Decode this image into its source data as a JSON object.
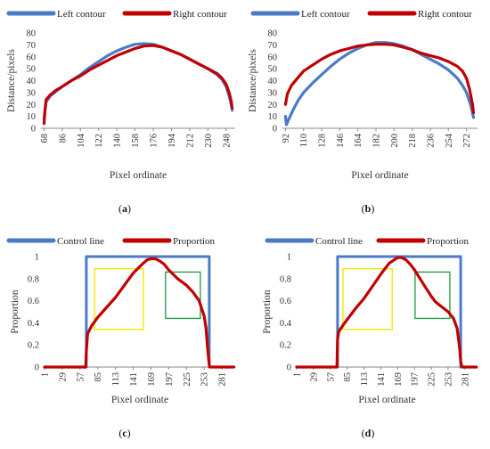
{
  "colors": {
    "blue": "#4a7bc4",
    "red": "#c00000",
    "yellow": "#f2e600",
    "green": "#2e9e4f",
    "axis": "#888888"
  },
  "chart_data": [
    {
      "type": "line",
      "panel_label": "a",
      "xlabel": "Pixel ordinate",
      "ylabel": "Distance/pixels",
      "ylim": [
        0,
        80
      ],
      "yticks": [
        0,
        10,
        20,
        30,
        40,
        50,
        60,
        70,
        80
      ],
      "xlim": [
        65,
        257
      ],
      "xticks": [
        68,
        86,
        104,
        122,
        140,
        158,
        176,
        194,
        212,
        230,
        248
      ],
      "legend": "top",
      "series": [
        {
          "name": "Left contour",
          "color": "#4a7bc4",
          "x": [
            68,
            70,
            74,
            80,
            86,
            95,
            104,
            113,
            122,
            131,
            140,
            149,
            158,
            167,
            176,
            185,
            194,
            203,
            212,
            221,
            230,
            239,
            244,
            248,
            251,
            253,
            254
          ],
          "y": [
            8,
            22,
            27,
            31,
            35,
            40,
            45,
            51,
            56,
            61,
            65,
            68,
            70.5,
            71,
            70.5,
            68,
            65,
            62,
            58,
            54,
            50,
            45,
            41,
            35,
            27,
            20,
            15
          ]
        },
        {
          "name": "Right contour",
          "color": "#c00000",
          "x": [
            68,
            69,
            70,
            74,
            80,
            86,
            95,
            104,
            113,
            122,
            131,
            140,
            149,
            158,
            167,
            176,
            185,
            194,
            203,
            212,
            221,
            230,
            239,
            244,
            248,
            251,
            253,
            254
          ],
          "y": [
            4,
            15,
            24,
            28,
            32,
            35,
            40,
            44,
            49,
            53,
            57,
            61,
            64,
            67,
            69,
            69.5,
            68,
            65,
            62,
            58,
            54,
            50,
            46,
            42,
            37,
            30,
            23,
            17
          ]
        }
      ]
    },
    {
      "type": "line",
      "panel_label": "b",
      "xlabel": "Pixel ordinate",
      "ylabel": "Distance/pixels",
      "ylim": [
        0,
        80
      ],
      "yticks": [
        0,
        10,
        20,
        30,
        40,
        50,
        60,
        70,
        80
      ],
      "xlim": [
        89,
        283
      ],
      "xticks": [
        92,
        110,
        128,
        146,
        164,
        182,
        200,
        218,
        236,
        254,
        272
      ],
      "legend": "top",
      "series": [
        {
          "name": "Left contour",
          "color": "#4a7bc4",
          "x": [
            92,
            93,
            95,
            100,
            105,
            110,
            119,
            128,
            137,
            146,
            155,
            164,
            173,
            182,
            191,
            200,
            209,
            218,
            227,
            236,
            245,
            254,
            263,
            268,
            272,
            276,
            279
          ],
          "y": [
            10,
            3,
            7,
            16,
            24,
            30,
            38,
            45,
            52,
            58,
            63,
            67,
            70,
            72,
            72,
            71,
            69,
            66,
            62,
            58,
            54,
            49,
            42,
            36,
            30,
            20,
            9
          ]
        },
        {
          "name": "Right contour",
          "color": "#c00000",
          "x": [
            92,
            94,
            98,
            104,
            110,
            119,
            128,
            137,
            146,
            155,
            164,
            173,
            182,
            191,
            200,
            209,
            218,
            227,
            236,
            245,
            254,
            263,
            268,
            272,
            275,
            278,
            279
          ],
          "y": [
            20,
            29,
            36,
            42,
            48,
            53,
            58,
            62,
            65,
            67,
            69,
            70,
            70.5,
            70.5,
            70,
            68,
            66,
            63,
            61,
            59,
            56,
            52,
            48,
            42,
            33,
            20,
            13
          ]
        }
      ]
    },
    {
      "type": "line",
      "panel_label": "c",
      "xlabel": "Pixel ordinate",
      "ylabel": "Proportion",
      "ylim": [
        0,
        1
      ],
      "yticks": [
        0,
        0.2,
        0.4,
        0.6,
        0.8,
        1
      ],
      "xlim": [
        1,
        302
      ],
      "xticks": [
        1,
        29,
        57,
        85,
        113,
        141,
        169,
        197,
        225,
        253,
        281
      ],
      "legend": "top",
      "series": [
        {
          "name": "Control line",
          "color": "#4a7bc4",
          "x": [
            1,
            67,
            67,
            261,
            261,
            300
          ],
          "y": [
            0,
            0,
            1,
            1,
            0,
            0
          ]
        },
        {
          "name": "Proportion",
          "color": "#c00000",
          "x": [
            1,
            66,
            67,
            69,
            75,
            85,
            99,
            113,
            127,
            141,
            155,
            163,
            169,
            176,
            183,
            190,
            197,
            211,
            225,
            235,
            245,
            253,
            256,
            258,
            260,
            261,
            262,
            270,
            300
          ],
          "y": [
            0,
            0,
            0.14,
            0.3,
            0.37,
            0.45,
            0.54,
            0.63,
            0.74,
            0.85,
            0.93,
            0.97,
            0.98,
            0.98,
            0.96,
            0.93,
            0.88,
            0.8,
            0.74,
            0.68,
            0.6,
            0.46,
            0.35,
            0.2,
            0.08,
            0.02,
            0,
            0,
            0
          ]
        }
      ],
      "boxes": [
        {
          "color": "#f2e600",
          "x": [
            80,
            157
          ],
          "y": [
            0.34,
            0.89
          ]
        },
        {
          "color": "#2e9e4f",
          "x": [
            192,
            247
          ],
          "y": [
            0.44,
            0.86
          ]
        }
      ]
    },
    {
      "type": "line",
      "panel_label": "d",
      "xlabel": "Pixel ordinate",
      "ylabel": "Proportion",
      "ylim": [
        0,
        1
      ],
      "yticks": [
        0,
        0.2,
        0.4,
        0.6,
        0.8,
        1
      ],
      "xlim": [
        1,
        302
      ],
      "xticks": [
        1,
        29,
        57,
        85,
        113,
        141,
        169,
        197,
        225,
        253,
        281
      ],
      "legend": "top",
      "series": [
        {
          "name": "Control line",
          "color": "#4a7bc4",
          "x": [
            1,
            69,
            69,
            274,
            274,
            300
          ],
          "y": [
            0,
            0,
            1,
            1,
            0,
            0
          ]
        },
        {
          "name": "Proportion",
          "color": "#c00000",
          "x": [
            1,
            68,
            69,
            71,
            77,
            85,
            99,
            113,
            127,
            141,
            155,
            169,
            176,
            183,
            190,
            197,
            204,
            211,
            218,
            225,
            232,
            239,
            246,
            253,
            262,
            268,
            272,
            274,
            276,
            300
          ],
          "y": [
            0,
            0,
            0.25,
            0.32,
            0.37,
            0.43,
            0.53,
            0.62,
            0.73,
            0.84,
            0.94,
            0.99,
            0.99,
            0.97,
            0.93,
            0.88,
            0.82,
            0.76,
            0.7,
            0.64,
            0.59,
            0.56,
            0.53,
            0.5,
            0.44,
            0.35,
            0.18,
            0.05,
            0,
            0
          ]
        }
      ],
      "boxes": [
        {
          "color": "#f2e600",
          "x": [
            78,
            160
          ],
          "y": [
            0.34,
            0.89
          ]
        },
        {
          "color": "#2e9e4f",
          "x": [
            198,
            256
          ],
          "y": [
            0.44,
            0.86
          ]
        }
      ]
    }
  ]
}
